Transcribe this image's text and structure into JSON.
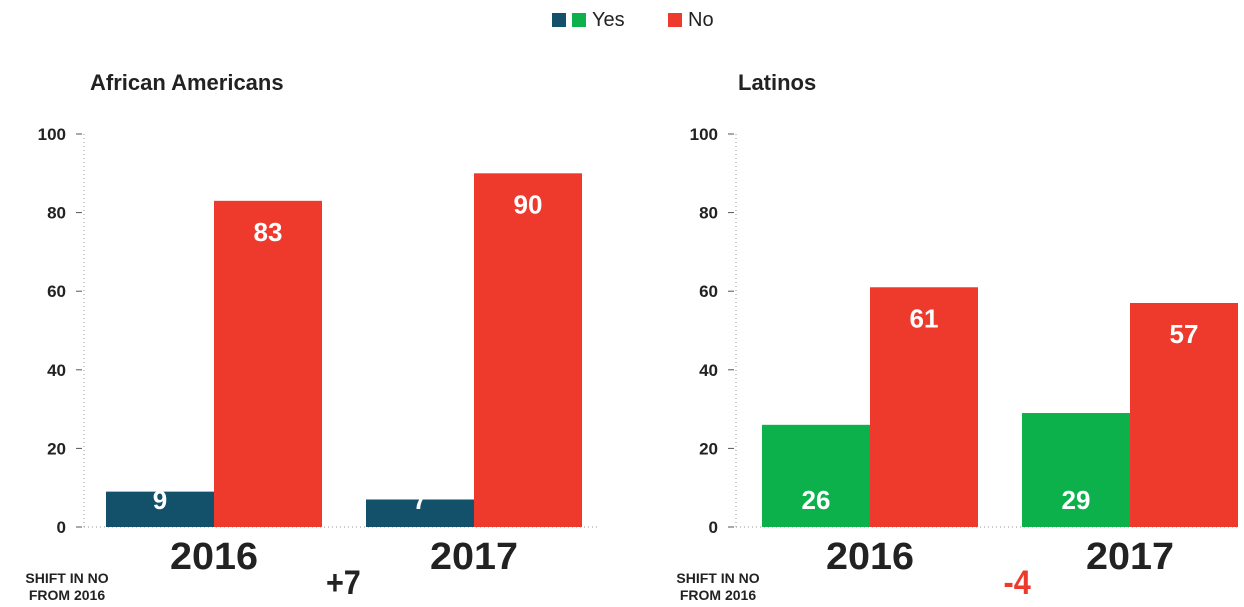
{
  "legend": {
    "yes_label": "Yes",
    "no_label": "No",
    "yes_colors": [
      "#135069",
      "#0db14b"
    ],
    "no_color": "#ee3a2c"
  },
  "chart_data": [
    {
      "type": "bar",
      "title": "African Americans",
      "categories": [
        "2016",
        "2017"
      ],
      "series": [
        {
          "name": "Yes",
          "values": [
            9,
            7
          ],
          "color": "#135069"
        },
        {
          "name": "No",
          "values": [
            83,
            90
          ],
          "color": "#ee3a2c"
        }
      ],
      "ylim": [
        0,
        100
      ],
      "yticks": [
        0,
        20,
        40,
        60,
        80,
        100
      ],
      "grid": "dotted-axes",
      "shift_label": "SHIFT IN NO FROM 2016",
      "shift_value": "+7"
    },
    {
      "type": "bar",
      "title": "Latinos",
      "categories": [
        "2016",
        "2017"
      ],
      "series": [
        {
          "name": "Yes",
          "values": [
            26,
            29
          ],
          "color": "#0db14b"
        },
        {
          "name": "No",
          "values": [
            61,
            57
          ],
          "color": "#ee3a2c"
        }
      ],
      "ylim": [
        0,
        100
      ],
      "yticks": [
        0,
        20,
        40,
        60,
        80,
        100
      ],
      "grid": "dotted-axes",
      "shift_label": "SHIFT IN NO FROM 2016",
      "shift_value": "-4"
    }
  ]
}
